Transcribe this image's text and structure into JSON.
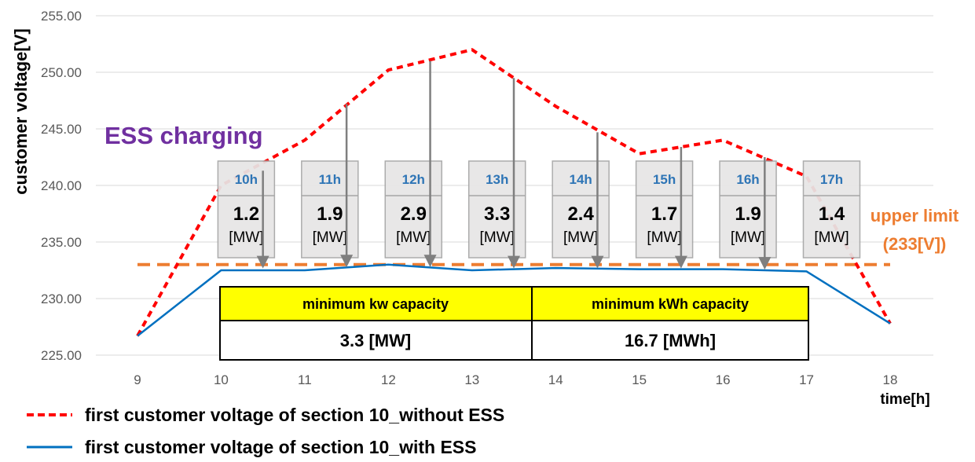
{
  "chart_data": {
    "type": "line",
    "x": [
      9,
      10,
      11,
      12,
      13,
      14,
      15,
      16,
      17,
      18
    ],
    "series": [
      {
        "name": "first customer voltage of section 10_without ESS",
        "color": "#ff0000",
        "style": "dashed",
        "values": [
          226.7,
          240.0,
          244.0,
          250.2,
          252.0,
          247.0,
          242.8,
          244.0,
          240.8,
          227.8
        ]
      },
      {
        "name": "first customer voltage of section 10_with ESS",
        "color": "#0070c0",
        "style": "solid",
        "values": [
          226.7,
          232.5,
          232.5,
          233.0,
          232.5,
          232.7,
          232.6,
          232.6,
          232.4,
          227.8
        ]
      }
    ],
    "ylim": [
      225,
      255
    ],
    "yticks": [
      "225.00",
      "230.00",
      "235.00",
      "240.00",
      "245.00",
      "250.00",
      "255.00"
    ],
    "xticks": [
      "9",
      "10",
      "11",
      "12",
      "13",
      "14",
      "15",
      "16",
      "17",
      "18"
    ],
    "ylabel": "customer voltage[V]",
    "xlabel": "time[h]",
    "grid": true,
    "upper_limit": {
      "value": 233,
      "color": "#ed7d31",
      "label_line1": "upper limit",
      "label_line2": "(233[V])"
    },
    "ess_label": "ESS charging",
    "charging_boxes": [
      {
        "hour": "10h",
        "value": "1.2",
        "unit": "[MW]",
        "x": 10.3
      },
      {
        "hour": "11h",
        "value": "1.9",
        "unit": "[MW]",
        "x": 11.3
      },
      {
        "hour": "12h",
        "value": "2.9",
        "unit": "[MW]",
        "x": 12.3
      },
      {
        "hour": "13h",
        "value": "3.3",
        "unit": "[MW]",
        "x": 13.3
      },
      {
        "hour": "14h",
        "value": "2.4",
        "unit": "[MW]",
        "x": 14.3
      },
      {
        "hour": "15h",
        "value": "1.7",
        "unit": "[MW]",
        "x": 15.3
      },
      {
        "hour": "16h",
        "value": "1.9",
        "unit": "[MW]",
        "x": 16.3
      },
      {
        "hour": "17h",
        "value": "1.4",
        "unit": "[MW]",
        "x": 17.3
      }
    ],
    "arrows": [
      {
        "x": 10.5,
        "from": 241.3,
        "to": 232.8
      },
      {
        "x": 11.5,
        "from": 247.2,
        "to": 232.9
      },
      {
        "x": 12.5,
        "from": 251.0,
        "to": 232.9
      },
      {
        "x": 13.5,
        "from": 249.5,
        "to": 232.8
      },
      {
        "x": 14.5,
        "from": 244.7,
        "to": 232.8
      },
      {
        "x": 15.5,
        "from": 243.4,
        "to": 232.8
      },
      {
        "x": 16.5,
        "from": 242.5,
        "to": 232.7
      }
    ],
    "table": {
      "headers": [
        "minimum kw capacity",
        "minimum kWh capacity"
      ],
      "values": [
        "3.3 [MW]",
        "16.7 [MWh]"
      ]
    }
  },
  "colors": {
    "grid": "#d9d9d9",
    "box_fill": "#e7e6e6",
    "box_stroke": "#a6a6a6",
    "arrow": "#7f7f7f",
    "table_head": "#ffff00"
  }
}
